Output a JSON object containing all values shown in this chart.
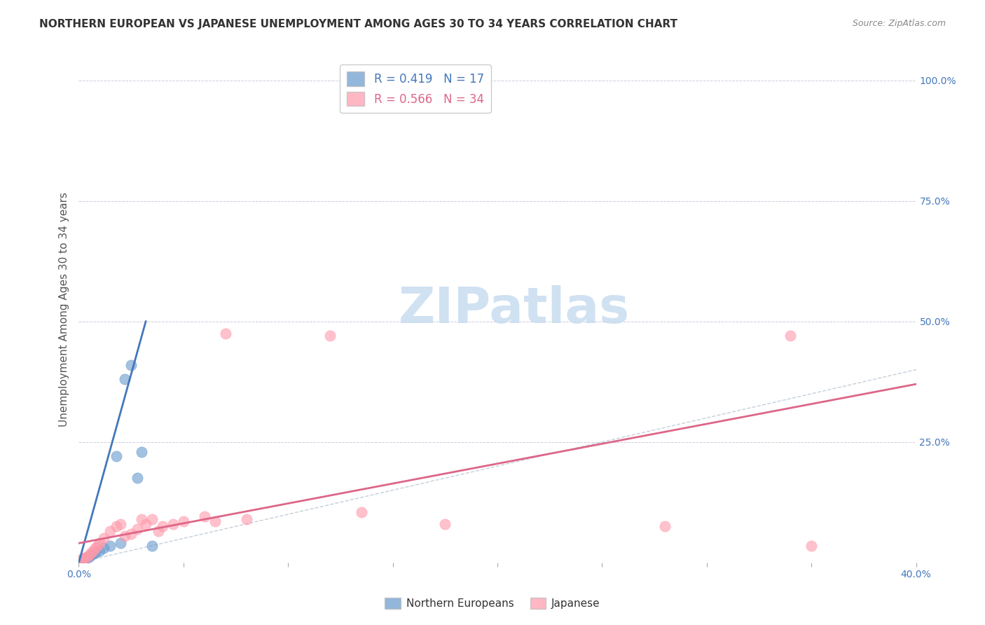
{
  "title": "NORTHERN EUROPEAN VS JAPANESE UNEMPLOYMENT AMONG AGES 30 TO 34 YEARS CORRELATION CHART",
  "source": "Source: ZipAtlas.com",
  "xlabel": "",
  "ylabel": "Unemployment Among Ages 30 to 34 years",
  "xlim": [
    0.0,
    0.4
  ],
  "ylim": [
    0.0,
    1.05
  ],
  "xticks": [
    0.0,
    0.05,
    0.1,
    0.15,
    0.2,
    0.25,
    0.3,
    0.35,
    0.4
  ],
  "xticklabels": [
    "0.0%",
    "",
    "",
    "",
    "",
    "",
    "",
    "",
    "40.0%"
  ],
  "yticks_right": [
    0.0,
    0.25,
    0.5,
    0.75,
    1.0
  ],
  "yticklabels_right": [
    "",
    "25.0%",
    "50.0%",
    "75.0%",
    "100.0%"
  ],
  "legend_blue_label": "R = 0.419   N = 17",
  "legend_pink_label": "R = 0.566   N = 34",
  "watermark": "ZIPatlas",
  "blue_color": "#6699CC",
  "pink_color": "#FF99AA",
  "blue_scatter": [
    [
      0.002,
      0.005
    ],
    [
      0.003,
      0.008
    ],
    [
      0.004,
      0.01
    ],
    [
      0.005,
      0.012
    ],
    [
      0.006,
      0.015
    ],
    [
      0.007,
      0.018
    ],
    [
      0.008,
      0.02
    ],
    [
      0.01,
      0.025
    ],
    [
      0.012,
      0.03
    ],
    [
      0.015,
      0.035
    ],
    [
      0.018,
      0.22
    ],
    [
      0.02,
      0.04
    ],
    [
      0.022,
      0.38
    ],
    [
      0.025,
      0.41
    ],
    [
      0.028,
      0.175
    ],
    [
      0.03,
      0.23
    ],
    [
      0.035,
      0.035
    ]
  ],
  "pink_scatter": [
    [
      0.001,
      0.005
    ],
    [
      0.002,
      0.008
    ],
    [
      0.003,
      0.01
    ],
    [
      0.004,
      0.012
    ],
    [
      0.005,
      0.015
    ],
    [
      0.006,
      0.02
    ],
    [
      0.007,
      0.025
    ],
    [
      0.008,
      0.03
    ],
    [
      0.009,
      0.035
    ],
    [
      0.01,
      0.04
    ],
    [
      0.012,
      0.05
    ],
    [
      0.015,
      0.065
    ],
    [
      0.018,
      0.075
    ],
    [
      0.02,
      0.08
    ],
    [
      0.022,
      0.055
    ],
    [
      0.025,
      0.06
    ],
    [
      0.028,
      0.07
    ],
    [
      0.03,
      0.09
    ],
    [
      0.032,
      0.08
    ],
    [
      0.035,
      0.09
    ],
    [
      0.038,
      0.065
    ],
    [
      0.04,
      0.075
    ],
    [
      0.045,
      0.08
    ],
    [
      0.05,
      0.085
    ],
    [
      0.06,
      0.095
    ],
    [
      0.065,
      0.085
    ],
    [
      0.07,
      0.475
    ],
    [
      0.08,
      0.09
    ],
    [
      0.12,
      0.47
    ],
    [
      0.135,
      0.105
    ],
    [
      0.175,
      0.08
    ],
    [
      0.28,
      0.075
    ],
    [
      0.34,
      0.47
    ],
    [
      0.35,
      0.035
    ]
  ],
  "blue_trendline": [
    [
      0.0,
      0.0
    ],
    [
      0.032,
      0.5
    ]
  ],
  "pink_trendline": [
    [
      0.0,
      0.04
    ],
    [
      0.4,
      0.37
    ]
  ],
  "diagonal_line": [
    [
      0.0,
      0.0
    ],
    [
      1.0,
      1.0
    ]
  ]
}
